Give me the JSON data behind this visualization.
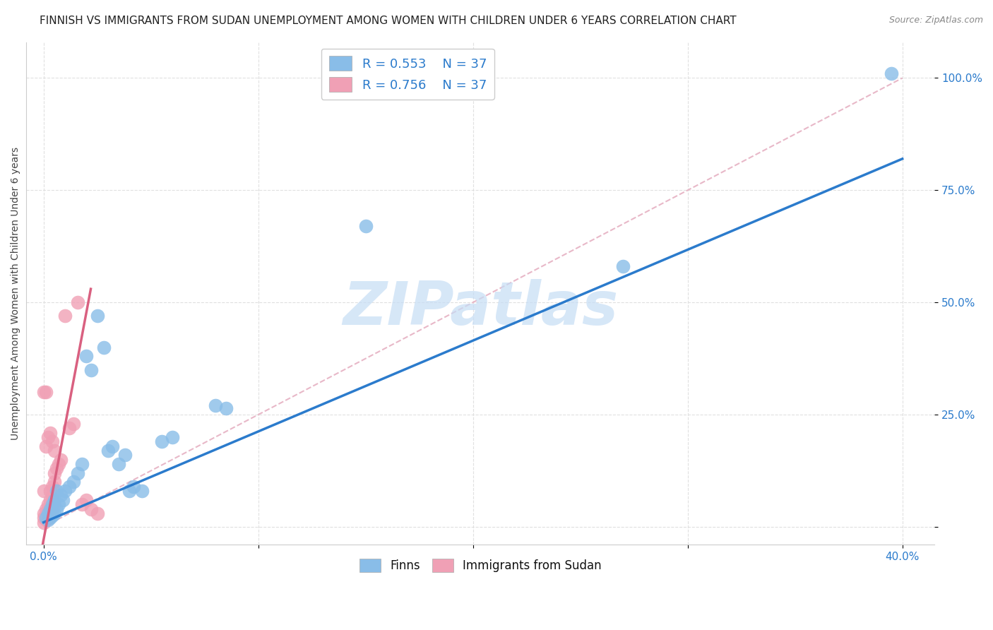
{
  "title": "FINNISH VS IMMIGRANTS FROM SUDAN UNEMPLOYMENT AMONG WOMEN WITH CHILDREN UNDER 6 YEARS CORRELATION CHART",
  "source": "Source: ZipAtlas.com",
  "ylabel": "Unemployment Among Women with Children Under 6 years",
  "xlabel_ticks_vals": [
    0.0,
    0.4
  ],
  "xlabel_ticks_labels": [
    "0.0%",
    "40.0%"
  ],
  "ylabel_ticks_vals": [
    0.0,
    0.25,
    0.5,
    0.75,
    1.0
  ],
  "ylabel_ticks_labels": [
    "",
    "25.0%",
    "50.0%",
    "75.0%",
    "100.0%"
  ],
  "xlim": [
    -0.008,
    0.415
  ],
  "ylim": [
    -0.04,
    1.08
  ],
  "legend_r_blue": "R = 0.553",
  "legend_n_blue": "N = 37",
  "legend_r_pink": "R = 0.756",
  "legend_n_pink": "N = 37",
  "legend_label_blue": "Finns",
  "legend_label_pink": "Immigrants from Sudan",
  "blue_color": "#89bde8",
  "pink_color": "#f0a0b5",
  "blue_line_color": "#2b7bcc",
  "pink_line_color": "#d96080",
  "r_n_color": "#2b7bcc",
  "tick_color": "#2b7bcc",
  "blue_scatter": [
    [
      0.001,
      0.02
    ],
    [
      0.002,
      0.015
    ],
    [
      0.002,
      0.03
    ],
    [
      0.003,
      0.02
    ],
    [
      0.003,
      0.04
    ],
    [
      0.004,
      0.025
    ],
    [
      0.004,
      0.05
    ],
    [
      0.005,
      0.03
    ],
    [
      0.005,
      0.06
    ],
    [
      0.006,
      0.04
    ],
    [
      0.006,
      0.08
    ],
    [
      0.007,
      0.05
    ],
    [
      0.008,
      0.07
    ],
    [
      0.009,
      0.06
    ],
    [
      0.01,
      0.08
    ],
    [
      0.012,
      0.09
    ],
    [
      0.014,
      0.1
    ],
    [
      0.016,
      0.12
    ],
    [
      0.018,
      0.14
    ],
    [
      0.02,
      0.38
    ],
    [
      0.022,
      0.35
    ],
    [
      0.025,
      0.47
    ],
    [
      0.028,
      0.4
    ],
    [
      0.03,
      0.17
    ],
    [
      0.032,
      0.18
    ],
    [
      0.035,
      0.14
    ],
    [
      0.038,
      0.16
    ],
    [
      0.04,
      0.08
    ],
    [
      0.042,
      0.09
    ],
    [
      0.046,
      0.08
    ],
    [
      0.055,
      0.19
    ],
    [
      0.06,
      0.2
    ],
    [
      0.08,
      0.27
    ],
    [
      0.085,
      0.265
    ],
    [
      0.15,
      0.67
    ],
    [
      0.27,
      0.58
    ],
    [
      0.395,
      1.01
    ]
  ],
  "pink_scatter": [
    [
      0.0,
      0.01
    ],
    [
      0.0,
      0.02
    ],
    [
      0.0,
      0.03
    ],
    [
      0.001,
      0.015
    ],
    [
      0.001,
      0.025
    ],
    [
      0.001,
      0.04
    ],
    [
      0.002,
      0.02
    ],
    [
      0.002,
      0.035
    ],
    [
      0.002,
      0.05
    ],
    [
      0.003,
      0.03
    ],
    [
      0.003,
      0.06
    ],
    [
      0.003,
      0.08
    ],
    [
      0.004,
      0.04
    ],
    [
      0.004,
      0.07
    ],
    [
      0.004,
      0.09
    ],
    [
      0.005,
      0.05
    ],
    [
      0.005,
      0.1
    ],
    [
      0.005,
      0.12
    ],
    [
      0.006,
      0.13
    ],
    [
      0.007,
      0.14
    ],
    [
      0.008,
      0.15
    ],
    [
      0.0,
      0.3
    ],
    [
      0.001,
      0.3
    ],
    [
      0.01,
      0.47
    ],
    [
      0.012,
      0.22
    ],
    [
      0.014,
      0.23
    ],
    [
      0.016,
      0.5
    ],
    [
      0.018,
      0.05
    ],
    [
      0.02,
      0.06
    ],
    [
      0.022,
      0.04
    ],
    [
      0.025,
      0.03
    ],
    [
      0.0,
      0.08
    ],
    [
      0.001,
      0.18
    ],
    [
      0.002,
      0.2
    ],
    [
      0.003,
      0.21
    ],
    [
      0.004,
      0.19
    ],
    [
      0.005,
      0.17
    ]
  ],
  "blue_line": [
    [
      0.0,
      0.01
    ],
    [
      0.4,
      0.82
    ]
  ],
  "pink_line": [
    [
      -0.002,
      -0.08
    ],
    [
      0.022,
      0.53
    ]
  ],
  "diag_line": [
    [
      0.0,
      0.0
    ],
    [
      0.4,
      1.0
    ]
  ],
  "background_color": "#ffffff",
  "grid_color": "#e0e0e0",
  "grid_linestyle": "--",
  "title_fontsize": 11,
  "axis_label_fontsize": 10,
  "tick_fontsize": 11,
  "watermark": "ZIPatlas",
  "watermark_color": "#c5ddf5",
  "source_color": "#888888"
}
